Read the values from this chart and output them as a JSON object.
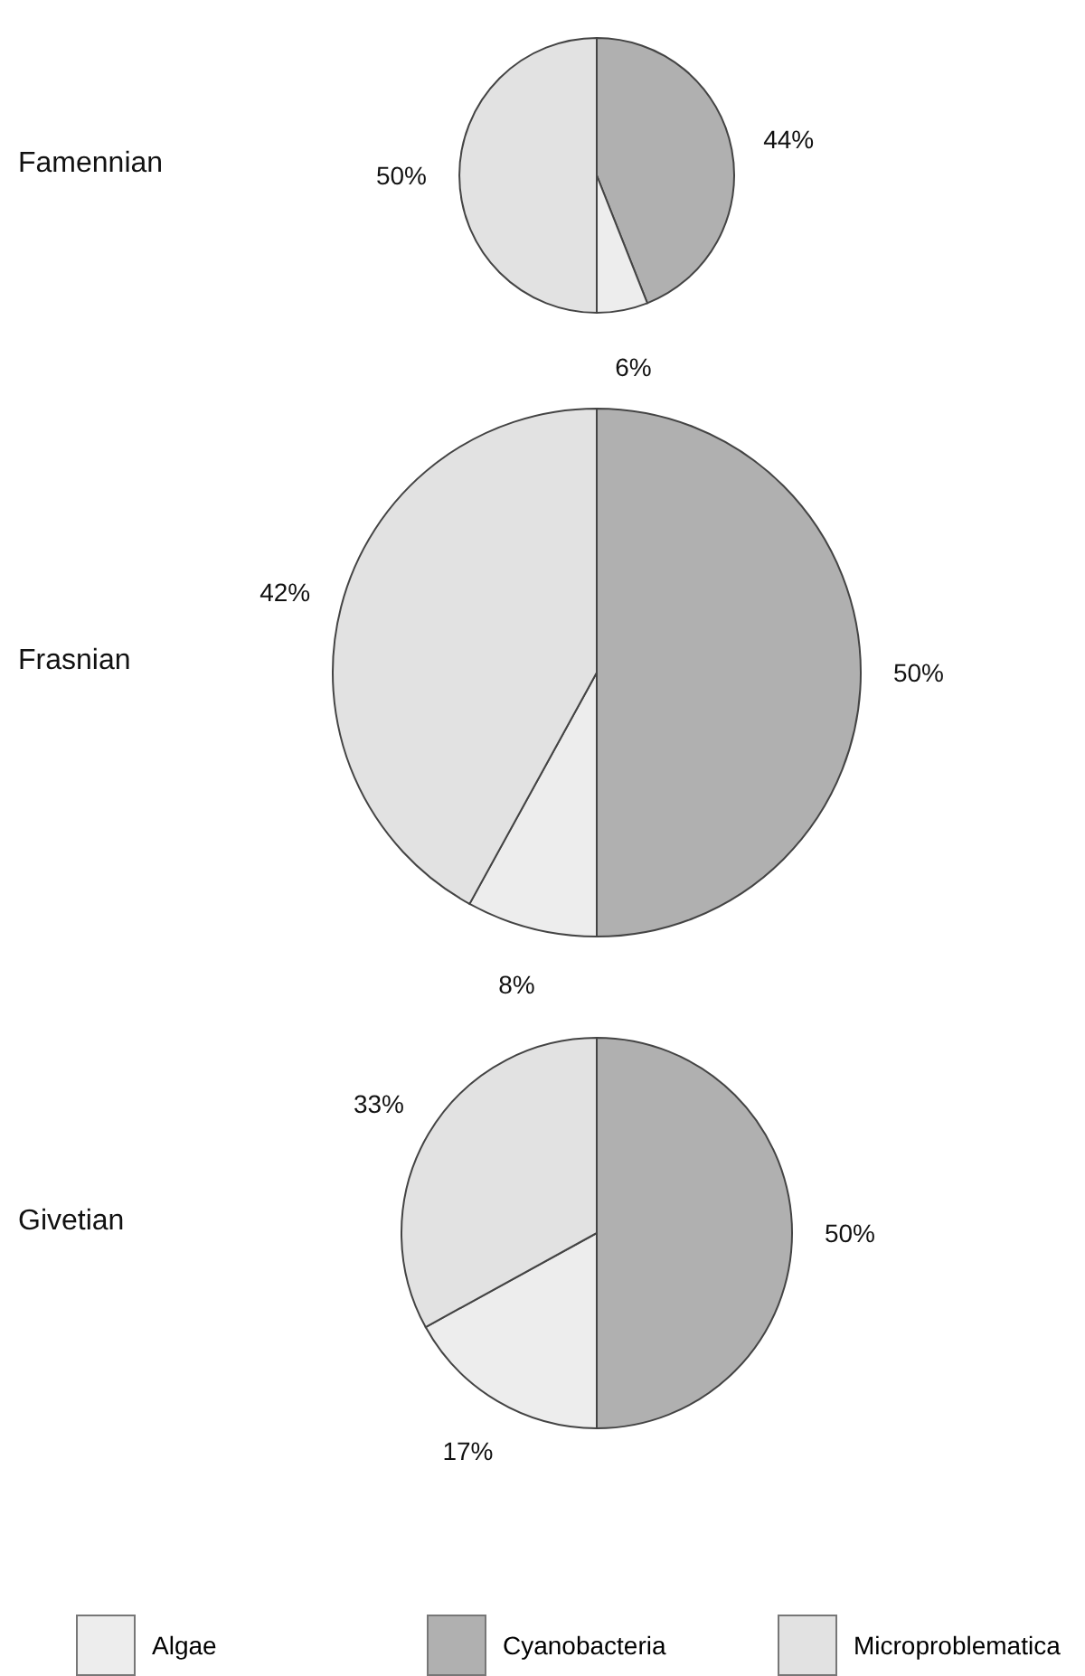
{
  "chart_data": [
    {
      "type": "pie",
      "title": "Famennian",
      "categories": [
        "Cyanobacteria",
        "Algae",
        "Microproblematica"
      ],
      "values": [
        44,
        6,
        50
      ],
      "colors": [
        "#b0b0b0",
        "#ededed",
        "#e2e2e2"
      ],
      "value_labels": [
        "44%",
        "6%",
        "50%"
      ],
      "legend": "bottom"
    },
    {
      "type": "pie",
      "title": "Frasnian",
      "categories": [
        null,
        null,
        null
      ],
      "values": [
        50,
        8,
        42
      ],
      "colors": [
        "#b0b0b0",
        "#ededed",
        "#e2e2e2"
      ],
      "value_labels": [
        "50%",
        "8%",
        "42%"
      ]
    },
    {
      "type": "pie",
      "title": "Givetian",
      "categories": [
        null,
        null,
        null
      ],
      "values": [
        50,
        17,
        33
      ],
      "colors": [
        "#b0b0b0",
        "#ededed",
        "#e2e2e2"
      ],
      "value_labels": [
        "50%",
        "17%",
        "33%"
      ]
    }
  ]
}
